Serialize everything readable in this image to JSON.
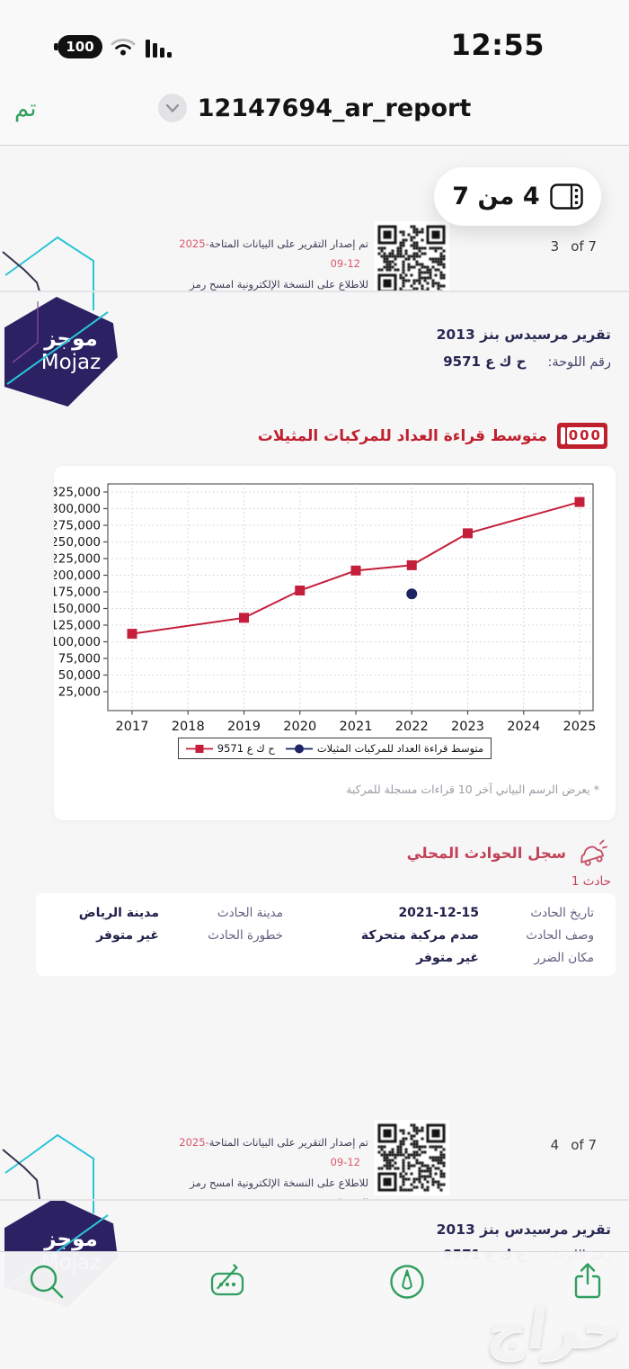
{
  "status_bar": {
    "time": "12:55",
    "battery_level": "100"
  },
  "nav_bar": {
    "done_label": "تم",
    "document_title": "12147694_ar_report"
  },
  "page_indicator_pill": {
    "label": "4 من 7"
  },
  "pdf_footer": {
    "issued_text": "تم إصدار التقرير على البيانات المتاحة",
    "issued_date": "2025-09-12",
    "scan_text": "للاطلاع على النسخة الإلكترونية امسح رمز الاستجابة.",
    "page3_number": "3",
    "page4_number": "4",
    "of_label": "of 7"
  },
  "brand": {
    "name_ar": "موجز",
    "name_en": "Mojaz"
  },
  "vehicle_header": {
    "report_title": "تقرير مرسيدس بنز 2013",
    "plate_label": "رقم اللوحة:",
    "plate_value": "ح ك ع 9571"
  },
  "odometer_section": {
    "title": "متوسط قراءة العداد للمركبات المثيلات",
    "odometer_icon_digits": "000",
    "footnote": "* يعرض الرسم البياني آخر 10 قراءات مسجلة للمركبة"
  },
  "chart_data": {
    "type": "line",
    "title": "متوسط قراءة العداد للمركبات المثيلات",
    "x_ticks": [
      2017,
      2018,
      2019,
      2020,
      2021,
      2022,
      2023,
      2024,
      2025
    ],
    "ylim": [
      25000,
      325000
    ],
    "ytick_step": 25000,
    "grid": true,
    "legend_position": "bottom",
    "series": [
      {
        "name": "ح ك ع 9571",
        "marker": "square",
        "color": "#c41e3a",
        "line": true,
        "points": [
          [
            2017,
            112000
          ],
          [
            2019,
            136000
          ],
          [
            2020,
            177000
          ],
          [
            2021,
            207000
          ],
          [
            2022,
            215000
          ],
          [
            2023,
            263000
          ],
          [
            2025,
            310000
          ]
        ]
      },
      {
        "name": "متوسط قراءة العداد للمركبات المثيلات",
        "marker": "circle",
        "color": "#1c2464",
        "line": false,
        "points": [
          [
            2022,
            172000
          ]
        ]
      }
    ]
  },
  "accident_section": {
    "title": "سجل الحوادث المحلي",
    "incident_label": "حادث 1",
    "table": {
      "rows": [
        {
          "c1_label": "تاريخ الحادث",
          "c1_value": "2021-12-15",
          "c2_label": "مدينة الحادث",
          "c2_value": "مدينة الرياض"
        },
        {
          "c1_label": "وصف الحادث",
          "c1_value": "صدم مركبة متحركة",
          "c2_label": "خطورة الحادث",
          "c2_value": "غير متوفر"
        },
        {
          "c1_label": "مكان الضرر",
          "c1_value": "غير متوفر",
          "c2_label": "",
          "c2_value": ""
        }
      ]
    }
  },
  "watermark_text": "حراج",
  "colors": {
    "accent_green": "#2f9f5e",
    "brand_purple": "#2b2163",
    "brand_cyan": "#2ac4d7",
    "chart_red": "#c41e3a",
    "navy": "#23234f",
    "section_red": "#c0202e",
    "date_red": "#d95868"
  }
}
